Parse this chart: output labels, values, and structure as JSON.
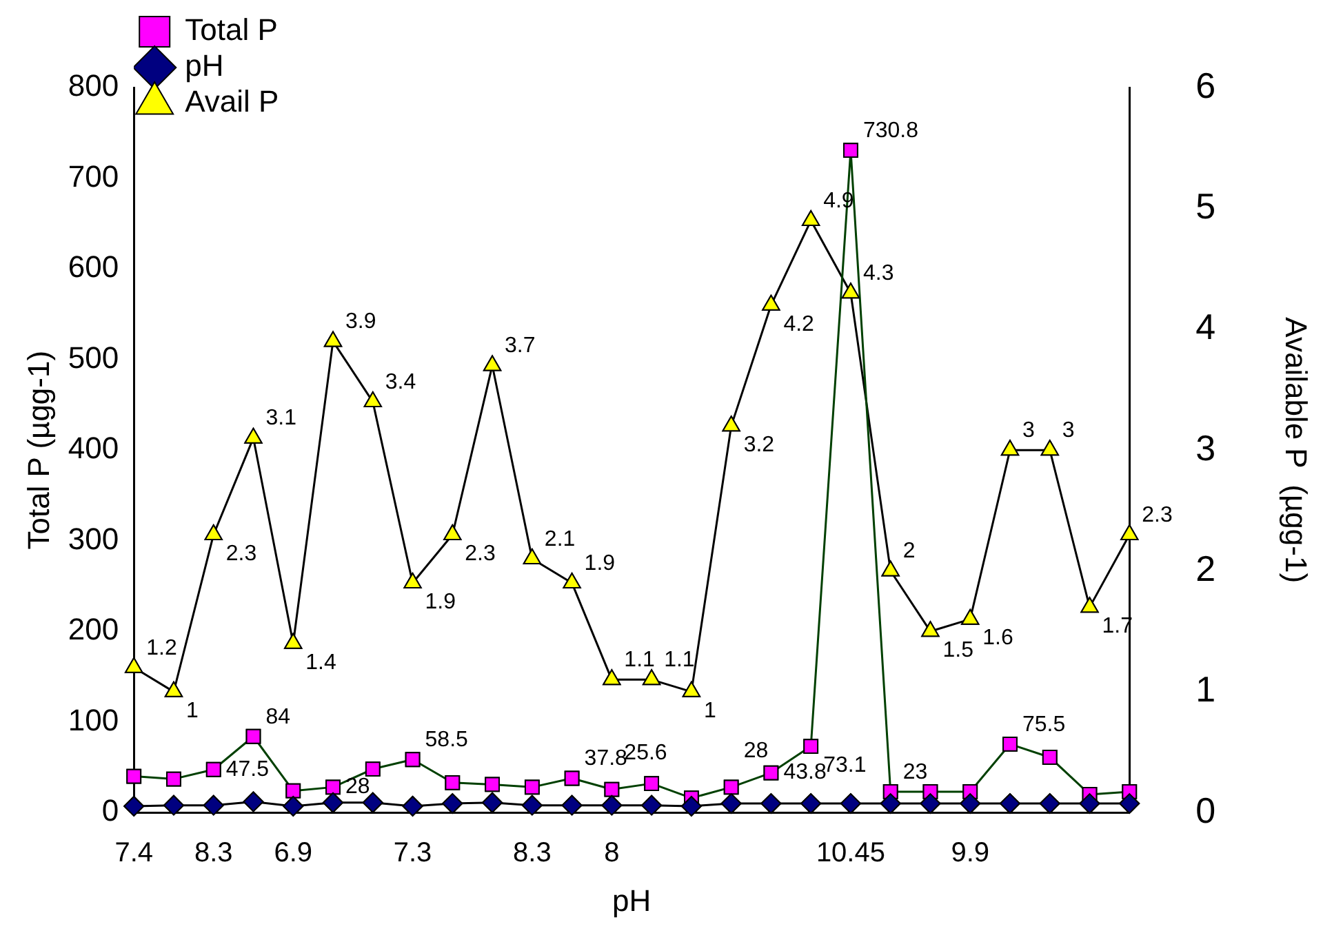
{
  "chart_data": {
    "type": "line",
    "xlabel": "pH",
    "ylabel": "Total P (µgg-1)",
    "y2label": "Available P  (µgg-1)",
    "categories": [
      "7.4",
      null,
      "8.3",
      null,
      "6.9",
      null,
      null,
      "7.3",
      null,
      null,
      "8.3",
      null,
      "8",
      null,
      null,
      null,
      null,
      null,
      "10.45",
      null,
      null,
      "9.9",
      null,
      null,
      null,
      null
    ],
    "series": [
      {
        "name": "Total P",
        "color": "#ff00ff",
        "marker": "square",
        "values": [
          40,
          37,
          47.5,
          84,
          24,
          28,
          48,
          58.5,
          33,
          31,
          28,
          37.8,
          25.6,
          32,
          16,
          28,
          43.8,
          73.1,
          730.8,
          23,
          23,
          23,
          75.5,
          61,
          20,
          23
        ],
        "value_labels": [
          null,
          null,
          "47.5",
          "84",
          null,
          "28",
          null,
          "58.5",
          null,
          null,
          null,
          "37.8",
          "25.6",
          null,
          null,
          "28",
          "43.8",
          "73.1",
          "730.8",
          "23",
          null,
          null,
          "75.5",
          null,
          null,
          null
        ]
      },
      {
        "name": "pH",
        "color": "#000080",
        "marker": "diamond",
        "values": [
          7,
          8,
          8,
          12,
          7,
          11,
          11,
          7,
          10,
          11,
          8,
          8,
          8,
          8,
          7,
          10,
          10,
          10,
          10,
          10,
          10,
          10,
          10,
          10,
          10,
          10
        ]
      },
      {
        "name": "Avail P",
        "color": "#ffff00",
        "marker": "triangle",
        "axis": "y2",
        "values": [
          1.2,
          1,
          2.3,
          3.1,
          1.4,
          3.9,
          3.4,
          1.9,
          2.3,
          3.7,
          2.1,
          1.9,
          1.1,
          1.1,
          1,
          3.2,
          4.2,
          4.9,
          4.3,
          2,
          1.5,
          1.6,
          3,
          3,
          1.7,
          2.3
        ],
        "value_labels": [
          "1.2",
          "1",
          "2.3",
          "3.1",
          "1.4",
          "3.9",
          "3.4",
          "1.9",
          "2.3",
          "3.7",
          "2.1",
          "1.9",
          "1.1",
          "1.1",
          "1",
          "3.2",
          "4.2",
          "4.9",
          "4.3",
          "2",
          "1.5",
          "1.6",
          "3",
          "3",
          "1.7",
          "2.3"
        ]
      }
    ],
    "ylim": [
      0,
      800
    ],
    "yticks": [
      0,
      100,
      200,
      300,
      400,
      500,
      600,
      700,
      800
    ],
    "y2lim": [
      0,
      6
    ],
    "y2ticks": [
      0,
      1,
      2,
      3,
      4,
      5,
      6
    ],
    "grid": false,
    "legend": "top left"
  }
}
